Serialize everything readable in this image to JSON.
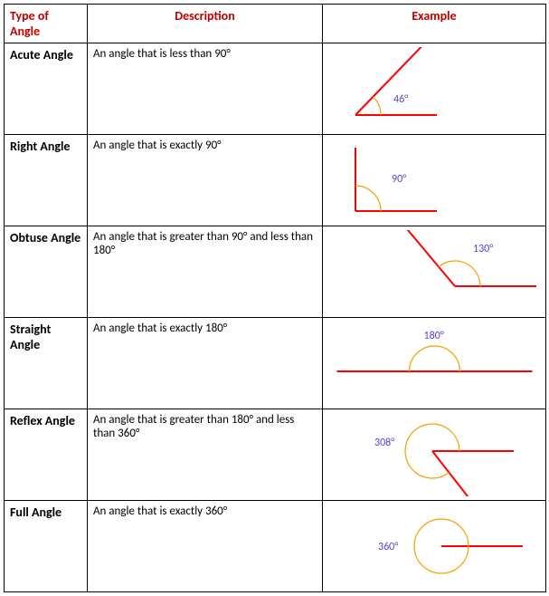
{
  "table": {
    "headers": [
      "Type of Angle",
      "Description",
      "Example"
    ],
    "header_color": "#c00000",
    "border_color": "#000000",
    "rows": [
      {
        "type": "Acute Angle",
        "desc": "An angle that is less than 90°",
        "label": "46°",
        "angle_deg": 46,
        "ray_color": "#ff0000",
        "arc_color": "#f4a000",
        "label_color": "#5a3fd4",
        "ray_width": 2,
        "arc_width": 1.2,
        "label_fontsize": 12
      },
      {
        "type": "Right Angle",
        "desc": "An angle that is exactly 90°",
        "label": "90°",
        "angle_deg": 90,
        "ray_color": "#ff0000",
        "arc_color": "#f4a000",
        "label_color": "#5a3fd4",
        "ray_width": 2,
        "arc_width": 1.2,
        "label_fontsize": 12
      },
      {
        "type": "Obtuse Angle",
        "desc": "An angle that is greater than 90° and less than 180°",
        "label": "130°",
        "angle_deg": 130,
        "ray_color": "#ff0000",
        "arc_color": "#f4a000",
        "label_color": "#5a3fd4",
        "ray_width": 2,
        "arc_width": 1.2,
        "label_fontsize": 12
      },
      {
        "type": "Straight Angle",
        "desc": "An angle that is exactly 180°",
        "label": "180°",
        "angle_deg": 180,
        "ray_color": "#ff0000",
        "arc_color": "#f4a000",
        "label_color": "#5a3fd4",
        "ray_width": 2,
        "arc_width": 1.2,
        "label_fontsize": 12
      },
      {
        "type": "Reflex Angle",
        "desc": "An angle that is greater than 180° and less than 360°",
        "label": "308°",
        "angle_deg": 308,
        "ray_color": "#ff0000",
        "arc_color": "#f4a000",
        "label_color": "#5a3fd4",
        "ray_width": 2,
        "arc_width": 1.2,
        "label_fontsize": 12
      },
      {
        "type": "Full Angle",
        "desc": "An angle that is exactly 360°",
        "label": "360°",
        "angle_deg": 360,
        "ray_color": "#ff0000",
        "arc_color": "#f4a000",
        "label_color": "#5a3fd4",
        "ray_width": 2,
        "arc_width": 1.2,
        "label_fontsize": 12
      }
    ]
  }
}
